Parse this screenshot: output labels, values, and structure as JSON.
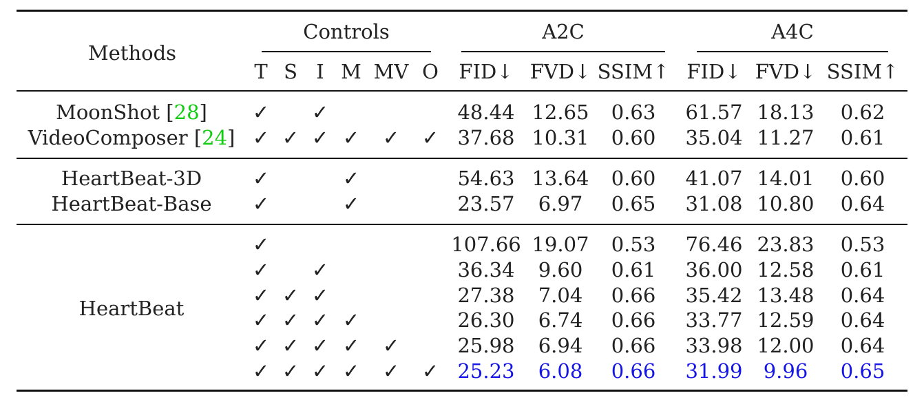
{
  "header": {
    "methods": "Methods",
    "controls": "Controls",
    "a2c": "A2C",
    "a4c": "A4C",
    "control_cols": [
      "T",
      "S",
      "I",
      "M",
      "MV",
      "O"
    ],
    "metric_cols": [
      "FID↓",
      "FVD↓",
      "SSIM↑",
      "FID↓",
      "FVD↓",
      "SSIM↑"
    ]
  },
  "check": "✓",
  "groups": [
    {
      "rows": [
        {
          "method": "MoonShot",
          "ref": "28",
          "controls": [
            true,
            false,
            true,
            false,
            false,
            false
          ],
          "values": [
            "48.44",
            "12.65",
            "0.63",
            "61.57",
            "18.13",
            "0.62"
          ]
        },
        {
          "method": "VideoComposer",
          "ref": "24",
          "controls": [
            true,
            true,
            true,
            true,
            true,
            true
          ],
          "values": [
            "37.68",
            "10.31",
            "0.60",
            "35.04",
            "11.27",
            "0.61"
          ]
        }
      ]
    },
    {
      "rows": [
        {
          "method": "HeartBeat-3D",
          "controls": [
            true,
            false,
            false,
            true,
            false,
            false
          ],
          "values": [
            "54.63",
            "13.64",
            "0.60",
            "41.07",
            "14.01",
            "0.60"
          ]
        },
        {
          "method": "HeartBeat-Base",
          "controls": [
            true,
            false,
            false,
            true,
            false,
            false
          ],
          "values": [
            "23.57",
            "6.97",
            "0.65",
            "31.08",
            "10.80",
            "0.64"
          ]
        }
      ]
    },
    {
      "group_label": "HeartBeat",
      "rows": [
        {
          "controls": [
            true,
            false,
            false,
            false,
            false,
            false
          ],
          "values": [
            "107.66",
            "19.07",
            "0.53",
            "76.46",
            "23.83",
            "0.53"
          ]
        },
        {
          "controls": [
            true,
            false,
            true,
            false,
            false,
            false
          ],
          "values": [
            "36.34",
            "9.60",
            "0.61",
            "36.00",
            "12.58",
            "0.61"
          ]
        },
        {
          "controls": [
            true,
            true,
            true,
            false,
            false,
            false
          ],
          "values": [
            "27.38",
            "7.04",
            "0.66",
            "35.42",
            "13.48",
            "0.64"
          ]
        },
        {
          "controls": [
            true,
            true,
            true,
            true,
            false,
            false
          ],
          "values": [
            "26.30",
            "6.74",
            "0.66",
            "33.77",
            "12.59",
            "0.64"
          ]
        },
        {
          "controls": [
            true,
            true,
            true,
            true,
            true,
            false
          ],
          "values": [
            "25.98",
            "6.94",
            "0.66",
            "33.98",
            "12.00",
            "0.64"
          ]
        },
        {
          "controls": [
            true,
            true,
            true,
            true,
            true,
            true
          ],
          "values": [
            "25.23",
            "6.08",
            "0.66",
            "31.99",
            "9.96",
            "0.65"
          ],
          "highlight": true
        }
      ]
    }
  ],
  "colors": {
    "highlight": "#1515e6",
    "citation": "#11cc11",
    "text": "#222222"
  }
}
